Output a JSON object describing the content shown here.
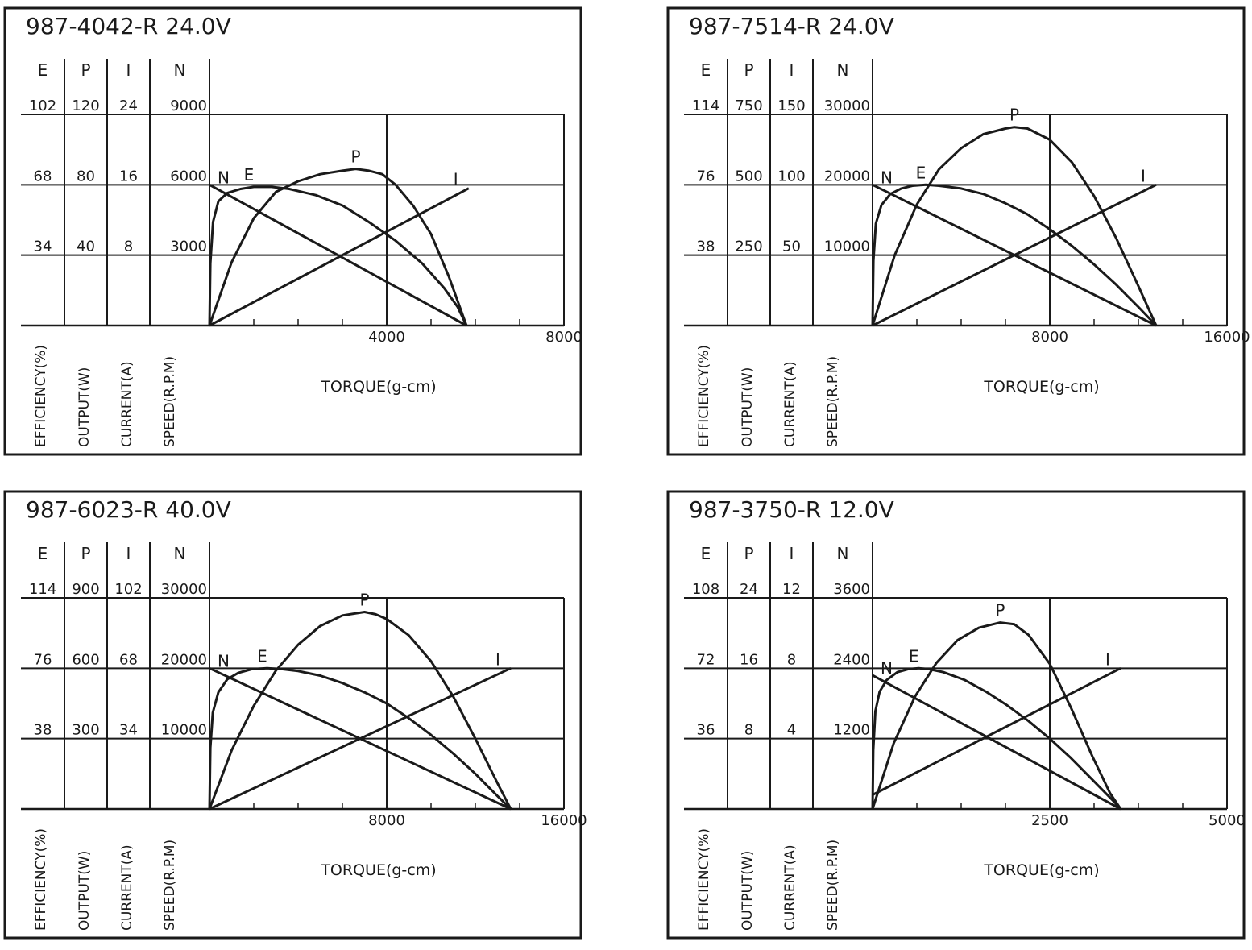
{
  "chart_data": [
    {
      "type": "line",
      "title": "987-4042-R",
      "voltage": "24.0V",
      "xlabel": "TORQUE(g-cm)",
      "xlim": [
        0,
        8000
      ],
      "x_ticks": [
        4000,
        8000
      ],
      "grid": true,
      "axes": [
        {
          "letter": "E",
          "label": "EFFICIENCY(%)",
          "max": 102,
          "ticks": [
            "102",
            "68",
            "34"
          ]
        },
        {
          "letter": "P",
          "label": "OUTPUT(W)",
          "max": 120,
          "ticks": [
            "120",
            "80",
            "40"
          ]
        },
        {
          "letter": "I",
          "label": "CURRENT(A)",
          "max": 24,
          "ticks": [
            "24",
            "16",
            "8"
          ]
        },
        {
          "letter": "N",
          "label": "SPEED(R.P.M)",
          "max": 9000,
          "ticks": [
            "9000",
            "6000",
            "3000"
          ]
        }
      ],
      "series": [
        {
          "name": "N",
          "axis": "N",
          "x": [
            0,
            5800
          ],
          "y": [
            6000,
            0
          ]
        },
        {
          "name": "I",
          "axis": "I",
          "x": [
            0,
            5850
          ],
          "y": [
            0,
            15.6
          ]
        },
        {
          "name": "E",
          "axis": "E",
          "x": [
            0,
            20,
            80,
            200,
            400,
            700,
            1000,
            1400,
            1800,
            2400,
            3000,
            3600,
            4200,
            4800,
            5300,
            5600,
            5800
          ],
          "y": [
            0,
            30,
            50,
            60,
            64,
            66,
            67,
            67,
            66,
            63,
            58,
            50,
            41,
            30,
            18,
            9,
            0
          ]
        },
        {
          "name": "P",
          "axis": "P",
          "x": [
            0,
            500,
            1000,
            1500,
            2000,
            2500,
            3000,
            3300,
            3600,
            3900,
            4200,
            4600,
            5000,
            5400,
            5800
          ],
          "y": [
            0,
            36,
            61,
            76,
            82,
            86,
            88,
            89,
            88,
            86,
            80,
            68,
            52,
            28,
            0
          ]
        }
      ]
    },
    {
      "type": "line",
      "title": "987-7514-R",
      "voltage": "24.0V",
      "xlabel": "TORQUE(g-cm)",
      "xlim": [
        0,
        16000
      ],
      "x_ticks": [
        8000,
        16000
      ],
      "grid": true,
      "axes": [
        {
          "letter": "E",
          "label": "EFFICIENCY(%)",
          "max": 114,
          "ticks": [
            "114",
            "76",
            "38"
          ]
        },
        {
          "letter": "P",
          "label": "OUTPUT(W)",
          "max": 750,
          "ticks": [
            "750",
            "500",
            "250"
          ]
        },
        {
          "letter": "I",
          "label": "CURRENT(A)",
          "max": 150,
          "ticks": [
            "150",
            "100",
            "50"
          ]
        },
        {
          "letter": "N",
          "label": "SPEED(R.P.M)",
          "max": 30000,
          "ticks": [
            "30000",
            "20000",
            "10000"
          ]
        }
      ],
      "series": [
        {
          "name": "N",
          "axis": "N",
          "x": [
            0,
            12800
          ],
          "y": [
            20000,
            0
          ]
        },
        {
          "name": "I",
          "axis": "I",
          "x": [
            0,
            12800
          ],
          "y": [
            0,
            100
          ]
        },
        {
          "name": "E",
          "axis": "E",
          "x": [
            0,
            40,
            150,
            400,
            800,
            1300,
            1800,
            2400,
            3000,
            4000,
            5000,
            6000,
            7000,
            8000,
            9000,
            10000,
            11000,
            12000,
            12800
          ],
          "y": [
            0,
            35,
            55,
            65,
            71,
            74,
            75.5,
            76,
            75.5,
            74,
            71,
            66,
            60,
            52,
            43,
            33,
            22,
            10,
            0
          ]
        },
        {
          "name": "P",
          "axis": "P",
          "x": [
            0,
            1000,
            2000,
            3000,
            4000,
            5000,
            6000,
            6400,
            7000,
            8000,
            9000,
            10000,
            11000,
            12000,
            12800
          ],
          "y": [
            0,
            250,
            430,
            555,
            630,
            680,
            700,
            705,
            700,
            660,
            580,
            460,
            310,
            140,
            0
          ]
        }
      ]
    },
    {
      "type": "line",
      "title": "987-6023-R",
      "voltage": "40.0V",
      "xlabel": "TORQUE(g-cm)",
      "xlim": [
        0,
        16000
      ],
      "x_ticks": [
        8000,
        16000
      ],
      "grid": true,
      "axes": [
        {
          "letter": "E",
          "label": "EFFICIENCY(%)",
          "max": 114,
          "ticks": [
            "114",
            "76",
            "38"
          ]
        },
        {
          "letter": "P",
          "label": "OUTPUT(W)",
          "max": 900,
          "ticks": [
            "900",
            "600",
            "300"
          ]
        },
        {
          "letter": "I",
          "label": "CURRENT(A)",
          "max": 102,
          "ticks": [
            "102",
            "68",
            "34"
          ]
        },
        {
          "letter": "N",
          "label": "SPEED(R.P.M)",
          "max": 30000,
          "ticks": [
            "30000",
            "20000",
            "10000"
          ]
        }
      ],
      "series": [
        {
          "name": "N",
          "axis": "N",
          "x": [
            0,
            13600
          ],
          "y": [
            20000,
            0
          ]
        },
        {
          "name": "I",
          "axis": "I",
          "x": [
            0,
            13600
          ],
          "y": [
            0,
            68
          ]
        },
        {
          "name": "E",
          "axis": "E",
          "x": [
            0,
            40,
            150,
            400,
            800,
            1300,
            1900,
            2600,
            3300,
            4000,
            5000,
            6000,
            7000,
            8000,
            9000,
            10000,
            11000,
            12000,
            13000,
            13600
          ],
          "y": [
            0,
            33,
            52,
            63,
            70,
            73.5,
            75.5,
            76,
            75.5,
            74.5,
            72,
            68,
            63,
            57,
            49,
            40,
            30,
            19,
            7,
            0
          ]
        },
        {
          "name": "P",
          "axis": "P",
          "x": [
            0,
            1000,
            2000,
            3000,
            4000,
            5000,
            6000,
            7000,
            7500,
            8000,
            9000,
            10000,
            11000,
            12000,
            13000,
            13600
          ],
          "y": [
            0,
            250,
            440,
            590,
            700,
            780,
            825,
            840,
            830,
            810,
            740,
            630,
            480,
            300,
            110,
            0
          ]
        }
      ]
    },
    {
      "type": "line",
      "title": "987-3750-R",
      "voltage": "12.0V",
      "xlabel": "TORQUE(g-cm)",
      "xlim": [
        0,
        5000
      ],
      "x_ticks": [
        2500,
        5000
      ],
      "grid": true,
      "axes": [
        {
          "letter": "E",
          "label": "EFFICIENCY(%)",
          "max": 108,
          "ticks": [
            "108",
            "72",
            "36"
          ]
        },
        {
          "letter": "P",
          "label": "OUTPUT(W)",
          "max": 24,
          "ticks": [
            "24",
            "16",
            "8"
          ]
        },
        {
          "letter": "I",
          "label": "CURRENT(A)",
          "max": 12,
          "ticks": [
            "12",
            "8",
            "4"
          ]
        },
        {
          "letter": "N",
          "label": "SPEED(R.P.M)",
          "max": 3600,
          "ticks": [
            "3600",
            "2400",
            "1200"
          ]
        }
      ],
      "series": [
        {
          "name": "N",
          "axis": "N",
          "x": [
            0,
            3500
          ],
          "y": [
            2280,
            0
          ]
        },
        {
          "name": "I",
          "axis": "I",
          "x": [
            0,
            3500
          ],
          "y": [
            0.8,
            8
          ]
        },
        {
          "name": "E",
          "axis": "E",
          "x": [
            0,
            10,
            40,
            100,
            200,
            350,
            500,
            650,
            800,
            1000,
            1300,
            1600,
            1900,
            2200,
            2500,
            2800,
            3100,
            3400,
            3500
          ],
          "y": [
            0,
            30,
            50,
            60,
            66,
            70,
            71.5,
            72,
            71.5,
            70,
            66,
            60,
            53,
            45,
            36,
            26,
            15,
            4,
            0
          ]
        },
        {
          "name": "P",
          "axis": "P",
          "x": [
            0,
            300,
            600,
            900,
            1200,
            1500,
            1800,
            2000,
            2200,
            2500,
            2800,
            3100,
            3350,
            3500
          ],
          "y": [
            0,
            7.5,
            12.8,
            16.6,
            19.2,
            20.6,
            21.2,
            21,
            19.8,
            16.5,
            11.5,
            6,
            1.8,
            0
          ]
        }
      ]
    }
  ]
}
